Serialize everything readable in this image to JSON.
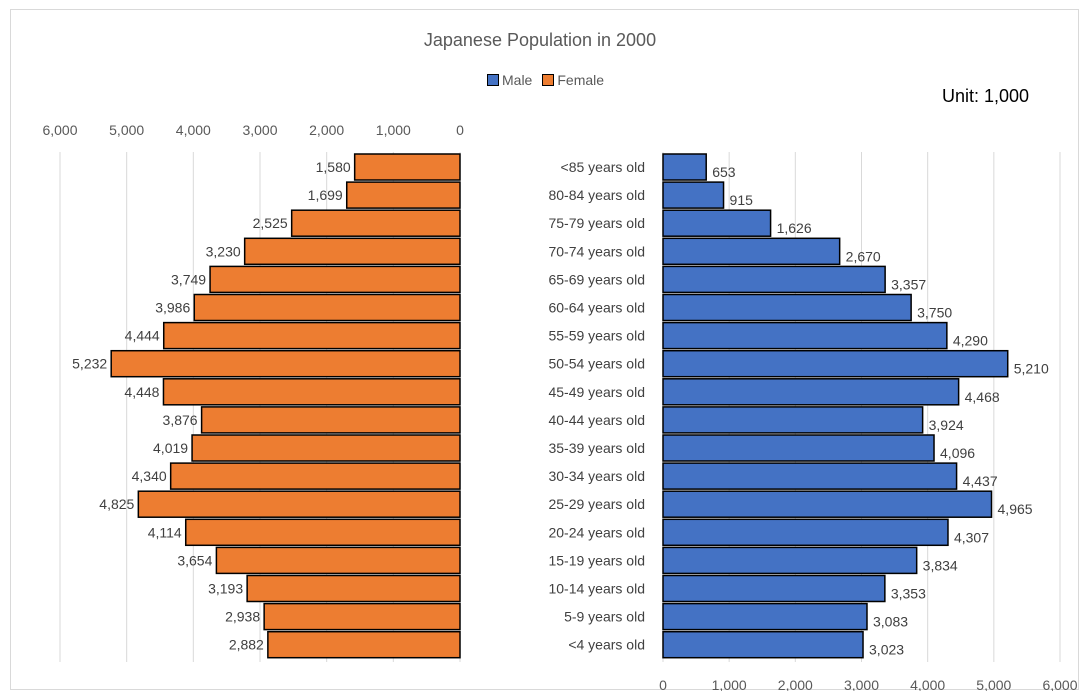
{
  "chart_data": {
    "type": "bar",
    "title": "Japanese Population in 2000",
    "unit_label": "Unit: 1,000",
    "legend": [
      "Male",
      "Female"
    ],
    "colors": {
      "Male": "#4472c4",
      "Female": "#ed7d31",
      "border": "#000000",
      "grid": "#d9d9d9"
    },
    "categories": [
      "<85 years old",
      "80-84 years old",
      "75-79 years old",
      "70-74 years old",
      "65-69 years old",
      "60-64 years old",
      "55-59 years old",
      "50-54 years old",
      "45-49 years old",
      "40-44 years old",
      "35-39 years old",
      "30-34 years old",
      "25-29 years old",
      "20-24 years old",
      "15-19 years old",
      "10-14 years old",
      "5-9 years old",
      "<4 years old"
    ],
    "series": [
      {
        "name": "Female",
        "values": [
          1580,
          1699,
          2525,
          3230,
          3749,
          3986,
          4444,
          5232,
          4448,
          3876,
          4019,
          4340,
          4825,
          4114,
          3654,
          3193,
          2938,
          2882
        ]
      },
      {
        "name": "Male",
        "values": [
          653,
          915,
          1626,
          2670,
          3357,
          3750,
          4290,
          5210,
          4468,
          3924,
          4096,
          4437,
          4965,
          4307,
          3834,
          3353,
          3083,
          3023
        ]
      }
    ],
    "female_axis": {
      "ticks": [
        6000,
        5000,
        4000,
        3000,
        2000,
        1000,
        0
      ],
      "tick_labels": [
        "6,000",
        "5,000",
        "4,000",
        "3,000",
        "2,000",
        "1,000",
        "0"
      ],
      "range": [
        0,
        6000
      ],
      "reversed": true
    },
    "male_axis": {
      "ticks": [
        0,
        1000,
        2000,
        3000,
        4000,
        5000,
        6000
      ],
      "tick_labels": [
        "0",
        "1,000",
        "2,000",
        "3,000",
        "4,000",
        "5,000",
        "6,000"
      ],
      "range": [
        0,
        6000
      ]
    },
    "grid": true,
    "legend_position": "top-center"
  }
}
